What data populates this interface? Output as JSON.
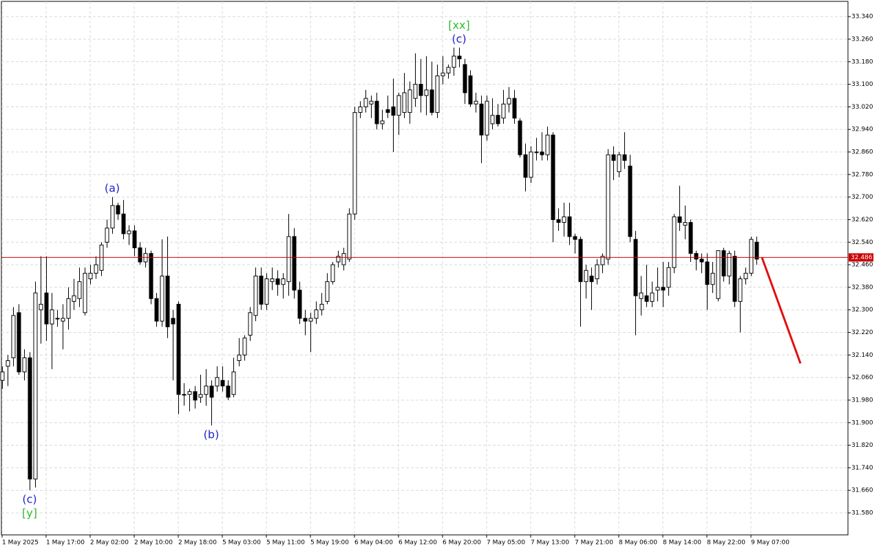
{
  "chart_data": {
    "type": "candlestick",
    "ylim": [
      31.502,
      33.394
    ],
    "yticks": [
      {
        "value": 33.34,
        "label": "33.340"
      },
      {
        "value": 33.26,
        "label": "33.260"
      },
      {
        "value": 33.18,
        "label": "33.180"
      },
      {
        "value": 33.1,
        "label": "33.100"
      },
      {
        "value": 33.02,
        "label": "33.020"
      },
      {
        "value": 32.94,
        "label": "32.940"
      },
      {
        "value": 32.86,
        "label": "32.860"
      },
      {
        "value": 32.78,
        "label": "32.780"
      },
      {
        "value": 32.7,
        "label": "32.700"
      },
      {
        "value": 32.62,
        "label": "32.620"
      },
      {
        "value": 32.54,
        "label": "32.540"
      },
      {
        "value": 32.46,
        "label": "32.460"
      },
      {
        "value": 32.38,
        "label": "32.380"
      },
      {
        "value": 32.3,
        "label": "32.300"
      },
      {
        "value": 32.22,
        "label": "32.220"
      },
      {
        "value": 32.14,
        "label": "32.140"
      },
      {
        "value": 32.06,
        "label": "32.060"
      },
      {
        "value": 31.98,
        "label": "31.980"
      },
      {
        "value": 31.9,
        "label": "31.900"
      },
      {
        "value": 31.82,
        "label": "31.820"
      },
      {
        "value": 31.74,
        "label": "31.740"
      },
      {
        "value": 31.66,
        "label": "31.660"
      },
      {
        "value": 31.58,
        "label": "31.580"
      }
    ],
    "grid": true,
    "up_color": "#ffffff",
    "down_color": "#000000",
    "categories": [
      "1 May 2025",
      null,
      null,
      null,
      null,
      null,
      null,
      null,
      "1 May 17:00",
      null,
      null,
      null,
      null,
      null,
      null,
      null,
      "2 May 02:00",
      null,
      null,
      null,
      null,
      null,
      null,
      null,
      "2 May 10:00",
      null,
      null,
      null,
      null,
      null,
      null,
      null,
      "2 May 18:00",
      null,
      null,
      null,
      null,
      null,
      null,
      null,
      "5 May 03:00",
      null,
      null,
      null,
      null,
      null,
      null,
      null,
      "5 May 11:00",
      null,
      null,
      null,
      null,
      null,
      null,
      null,
      "5 May 19:00",
      null,
      null,
      null,
      null,
      null,
      null,
      null,
      "6 May 04:00",
      null,
      null,
      null,
      null,
      null,
      null,
      null,
      "6 May 12:00",
      null,
      null,
      null,
      null,
      null,
      null,
      null,
      "6 May 20:00",
      null,
      null,
      null,
      null,
      null,
      null,
      null,
      "7 May 05:00",
      null,
      null,
      null,
      null,
      null,
      null,
      null,
      "7 May 13:00",
      null,
      null,
      null,
      null,
      null,
      null,
      null,
      "7 May 21:00",
      null,
      null,
      null,
      null,
      null,
      null,
      null,
      "8 May 06:00",
      null,
      null,
      null,
      null,
      null,
      null,
      null,
      "8 May 14:00",
      null,
      null,
      null,
      null,
      null,
      null,
      null,
      "8 May 22:00",
      null,
      null,
      null,
      null,
      null,
      null,
      null,
      "9 May 07:00",
      null
    ],
    "candles": [
      [
        32.05,
        32.1,
        32.02,
        32.08
      ],
      [
        32.1,
        32.14,
        32.03,
        32.12
      ],
      [
        32.13,
        32.31,
        32.1,
        32.28
      ],
      [
        32.29,
        32.32,
        32.07,
        32.08
      ],
      [
        32.08,
        32.16,
        32.05,
        32.13
      ],
      [
        32.13,
        32.15,
        31.66,
        31.7
      ],
      [
        31.7,
        32.4,
        31.67,
        32.36
      ],
      [
        32.3,
        32.49,
        32.18,
        32.32
      ],
      [
        32.36,
        32.49,
        32.19,
        32.25
      ],
      [
        32.25,
        32.36,
        32.09,
        32.3
      ],
      [
        32.27,
        32.3,
        32.24,
        32.27
      ],
      [
        32.26,
        32.32,
        32.16,
        32.27
      ],
      [
        32.27,
        32.38,
        32.23,
        32.34
      ],
      [
        32.33,
        32.41,
        32.3,
        32.35
      ],
      [
        32.34,
        32.45,
        32.31,
        32.4
      ],
      [
        32.29,
        32.45,
        32.28,
        32.43
      ],
      [
        32.41,
        32.46,
        32.39,
        32.43
      ],
      [
        32.43,
        32.49,
        32.41,
        32.46
      ],
      [
        32.44,
        32.54,
        32.42,
        32.53
      ],
      [
        32.54,
        32.62,
        32.52,
        32.59
      ],
      [
        32.59,
        32.7,
        32.57,
        32.67
      ],
      [
        32.67,
        32.68,
        32.62,
        32.64
      ],
      [
        32.64,
        32.69,
        32.55,
        32.57
      ],
      [
        32.57,
        32.6,
        32.53,
        32.58
      ],
      [
        32.58,
        32.6,
        32.49,
        32.52
      ],
      [
        32.52,
        32.54,
        32.46,
        32.47
      ],
      [
        32.47,
        32.52,
        32.45,
        32.5
      ],
      [
        32.5,
        32.51,
        32.32,
        32.34
      ],
      [
        32.34,
        32.36,
        32.24,
        32.26
      ],
      [
        32.26,
        32.55,
        32.24,
        32.42
      ],
      [
        32.42,
        32.56,
        32.2,
        32.24
      ],
      [
        32.27,
        32.3,
        32.05,
        32.25
      ],
      [
        32.32,
        32.33,
        31.93,
        32.0
      ],
      [
        32.0,
        32.04,
        31.96,
        32.0
      ],
      [
        32.0,
        32.02,
        31.94,
        32.01
      ],
      [
        32.01,
        32.03,
        31.95,
        31.98
      ],
      [
        31.99,
        32.07,
        31.97,
        32.0
      ],
      [
        32.0,
        32.09,
        31.96,
        32.03
      ],
      [
        32.03,
        32.05,
        31.89,
        31.99
      ],
      [
        32.03,
        32.1,
        32.01,
        32.06
      ],
      [
        32.05,
        32.1,
        32.01,
        32.03
      ],
      [
        32.03,
        32.05,
        31.98,
        31.99
      ],
      [
        32.0,
        32.13,
        31.99,
        32.08
      ],
      [
        32.12,
        32.2,
        32.1,
        32.14
      ],
      [
        32.14,
        32.21,
        32.12,
        32.2
      ],
      [
        32.21,
        32.31,
        32.19,
        32.29
      ],
      [
        32.28,
        32.45,
        32.26,
        32.42
      ],
      [
        32.42,
        32.45,
        32.3,
        32.32
      ],
      [
        32.32,
        32.43,
        32.3,
        32.41
      ],
      [
        32.4,
        32.45,
        32.37,
        32.41
      ],
      [
        32.41,
        32.44,
        32.35,
        32.39
      ],
      [
        32.39,
        32.43,
        32.34,
        32.41
      ],
      [
        32.4,
        32.64,
        32.35,
        32.56
      ],
      [
        32.56,
        32.59,
        32.34,
        32.37
      ],
      [
        32.37,
        32.4,
        32.25,
        32.27
      ],
      [
        32.27,
        32.3,
        32.21,
        32.26
      ],
      [
        32.26,
        32.29,
        32.15,
        32.27
      ],
      [
        32.27,
        32.33,
        32.25,
        32.3
      ],
      [
        32.3,
        32.36,
        32.28,
        32.32
      ],
      [
        32.33,
        32.43,
        32.32,
        32.4
      ],
      [
        32.4,
        32.47,
        32.39,
        32.46
      ],
      [
        32.47,
        32.51,
        32.45,
        32.49
      ],
      [
        32.46,
        32.52,
        32.44,
        32.5
      ],
      [
        32.48,
        32.66,
        32.47,
        32.64
      ],
      [
        32.64,
        33.02,
        32.62,
        33.0
      ],
      [
        33.0,
        33.04,
        32.98,
        33.02
      ],
      [
        33.02,
        33.08,
        33.0,
        33.05
      ],
      [
        33.03,
        33.06,
        32.98,
        33.04
      ],
      [
        33.04,
        33.07,
        32.94,
        32.96
      ],
      [
        32.96,
        33.01,
        32.94,
        32.97
      ],
      [
        33.01,
        33.06,
        32.98,
        33.0
      ],
      [
        33.02,
        33.12,
        32.86,
        32.99
      ],
      [
        32.99,
        33.07,
        32.92,
        33.06
      ],
      [
        33.0,
        33.14,
        32.98,
        33.07
      ],
      [
        33.0,
        33.11,
        32.96,
        33.08
      ],
      [
        33.05,
        33.21,
        33.02,
        33.1
      ],
      [
        33.1,
        33.19,
        33.0,
        33.06
      ],
      [
        33.06,
        33.2,
        32.99,
        33.08
      ],
      [
        33.08,
        33.18,
        32.99,
        33.0
      ],
      [
        33.0,
        33.17,
        32.98,
        33.13
      ],
      [
        33.13,
        33.2,
        33.1,
        33.14
      ],
      [
        33.14,
        33.17,
        33.12,
        33.16
      ],
      [
        33.16,
        33.23,
        33.13,
        33.2
      ],
      [
        33.2,
        33.23,
        33.16,
        33.19
      ],
      [
        33.17,
        33.19,
        33.03,
        33.07
      ],
      [
        33.13,
        33.15,
        33.02,
        33.03
      ],
      [
        33.03,
        33.07,
        33.0,
        33.04
      ],
      [
        33.03,
        33.06,
        32.82,
        32.92
      ],
      [
        32.92,
        33.06,
        32.9,
        33.04
      ],
      [
        32.96,
        33.05,
        32.94,
        32.99
      ],
      [
        32.99,
        33.03,
        32.95,
        32.96
      ],
      [
        32.98,
        33.08,
        32.96,
        33.03
      ],
      [
        33.03,
        33.09,
        33.0,
        33.05
      ],
      [
        33.05,
        33.08,
        32.96,
        32.98
      ],
      [
        32.97,
        32.98,
        32.84,
        32.85
      ],
      [
        32.85,
        32.89,
        32.72,
        32.77
      ],
      [
        32.77,
        32.88,
        32.75,
        32.86
      ],
      [
        32.86,
        32.91,
        32.83,
        32.86
      ],
      [
        32.86,
        32.93,
        32.83,
        32.85
      ],
      [
        32.85,
        32.95,
        32.83,
        32.92
      ],
      [
        32.92,
        32.93,
        32.54,
        32.62
      ],
      [
        32.62,
        32.66,
        32.58,
        32.61
      ],
      [
        32.61,
        32.68,
        32.56,
        32.63
      ],
      [
        32.63,
        32.68,
        32.53,
        32.56
      ],
      [
        32.56,
        32.57,
        32.5,
        32.55
      ],
      [
        32.55,
        32.56,
        32.24,
        32.4
      ],
      [
        32.4,
        32.46,
        32.34,
        32.44
      ],
      [
        32.42,
        32.45,
        32.3,
        32.4
      ],
      [
        32.41,
        32.48,
        32.39,
        32.46
      ],
      [
        32.46,
        32.5,
        32.43,
        32.49
      ],
      [
        32.48,
        32.87,
        32.46,
        32.85
      ],
      [
        32.85,
        32.88,
        32.76,
        32.83
      ],
      [
        32.79,
        32.86,
        32.77,
        32.85
      ],
      [
        32.85,
        32.93,
        32.8,
        32.83
      ],
      [
        32.81,
        32.85,
        32.54,
        32.56
      ],
      [
        32.55,
        32.58,
        32.21,
        32.35
      ],
      [
        32.34,
        32.42,
        32.28,
        32.36
      ],
      [
        32.35,
        32.46,
        32.31,
        32.33
      ],
      [
        32.33,
        32.4,
        32.31,
        32.36
      ],
      [
        32.37,
        32.45,
        32.33,
        32.38
      ],
      [
        32.38,
        32.47,
        32.31,
        32.37
      ],
      [
        32.38,
        32.47,
        32.35,
        32.45
      ],
      [
        32.45,
        32.64,
        32.43,
        32.63
      ],
      [
        32.63,
        32.74,
        32.58,
        32.61
      ],
      [
        32.6,
        32.67,
        32.55,
        32.61
      ],
      [
        32.61,
        32.62,
        32.47,
        32.5
      ],
      [
        32.5,
        32.51,
        32.44,
        32.48
      ],
      [
        32.48,
        32.5,
        32.43,
        32.47
      ],
      [
        32.47,
        32.5,
        32.3,
        32.39
      ],
      [
        32.39,
        32.47,
        32.36,
        32.43
      ],
      [
        32.34,
        32.51,
        32.33,
        32.51
      ],
      [
        32.51,
        32.52,
        32.4,
        32.42
      ],
      [
        32.42,
        32.51,
        32.39,
        32.5
      ],
      [
        32.49,
        32.51,
        32.31,
        32.33
      ],
      [
        32.33,
        32.42,
        32.22,
        32.41
      ],
      [
        32.41,
        32.45,
        32.39,
        32.43
      ],
      [
        32.43,
        32.56,
        32.42,
        32.55
      ],
      [
        32.54,
        32.56,
        32.46,
        32.48
      ]
    ],
    "price_line": {
      "value": 32.486,
      "color": "#cc0000"
    },
    "forecast": {
      "color": "#e01010",
      "x": [
        138,
        145
      ],
      "values": [
        32.486,
        32.11
      ]
    },
    "annotations": [
      {
        "candle": 5,
        "side": "low",
        "lines": [
          {
            "text": "(c)",
            "color": "#2222cc"
          },
          {
            "text": "[y]",
            "color": "#33bb33"
          }
        ]
      },
      {
        "candle": 20,
        "side": "high",
        "lines": [
          {
            "text": "(a)",
            "color": "#2222cc"
          }
        ]
      },
      {
        "candle": 38,
        "side": "low",
        "lines": [
          {
            "text": "(b)",
            "color": "#2222cc"
          }
        ]
      },
      {
        "candle": 83,
        "side": "high",
        "lines": [
          {
            "text": "(c)",
            "color": "#2222cc"
          },
          {
            "text": "[xx]",
            "color": "#33bb33"
          }
        ]
      }
    ]
  }
}
